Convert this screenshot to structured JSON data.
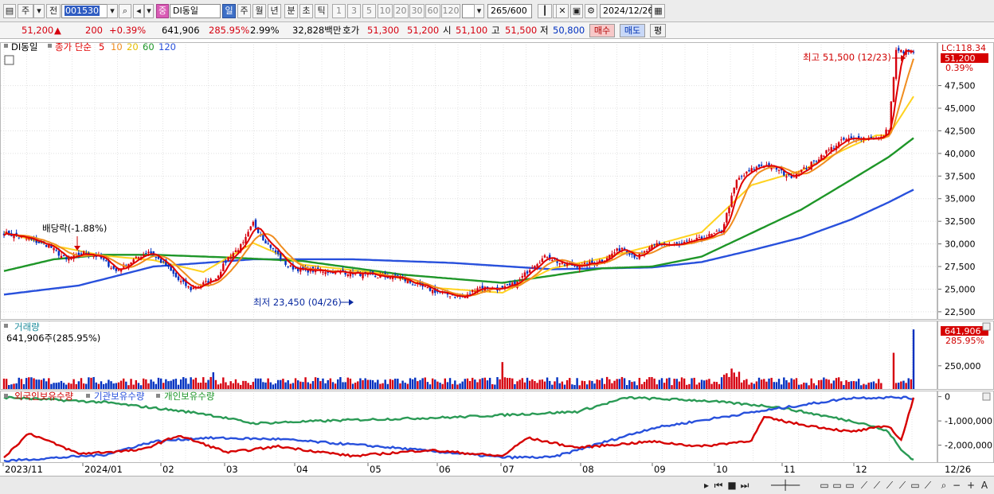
{
  "toolbar": {
    "period_letter": "주",
    "prev_label": "전",
    "stock_code": "001530",
    "stock_name": "DI동일",
    "tf_badge": "중",
    "timeframes": [
      "일",
      "주",
      "월",
      "년",
      "분",
      "초",
      "틱"
    ],
    "selected_timeframe": "일",
    "minute_options": [
      "1",
      "3",
      "5",
      "10",
      "20",
      "30",
      "60",
      "120"
    ],
    "count_value": "265",
    "count_max": "/600",
    "date_value": "2024/12/26"
  },
  "quote": {
    "price": "51,200",
    "change_arrow": "▲",
    "change": "200",
    "change_pct": "+0.39%",
    "volume": "641,906",
    "volume_ratio": "285.95%",
    "turnover": "2.99%",
    "amount": "32,828백만",
    "bid_label": "호가",
    "bid1": "51,300",
    "bid2": "51,200",
    "open_label": "시",
    "open": "51,100",
    "high_label": "고",
    "high": "51,500",
    "low_label": "저",
    "low": "50,800",
    "buy_label": "매수",
    "sell_label": "매도",
    "eval_label": "평"
  },
  "legend": {
    "stock_name": "DI동일",
    "ma_prefix": "종가 단순",
    "ma_periods": [
      "5",
      "10",
      "20",
      "60",
      "120"
    ],
    "volume_title": "거래량",
    "volume_value": "641,906주(285.95%)",
    "holdings": [
      "외국인보유수량",
      "기관보유수량",
      "개인보유수량"
    ]
  },
  "labels": {
    "lc": "LC:118.34",
    "price_tag": "51,200",
    "price_tag_pct": "0.39%",
    "high_note": "최고 51,500 (12/23)",
    "low_note": "최저 23,450 (04/26)",
    "dividend_note": "배당락(-1.88%)",
    "vol_tag": "641,906",
    "vol_tag_pct": "285.95%",
    "date_end": "12/26"
  },
  "colors": {
    "up": "#d6000f",
    "down": "#0030c0",
    "ma5": "#e00000",
    "ma10": "#f08c1e",
    "ma20": "#ffd21e",
    "ma60": "#1e9628",
    "ma120": "#2850dc",
    "foreign": "#2850dc",
    "institution": "#d60000",
    "individual": "#2a9a55"
  },
  "chart_data": [
    {
      "type": "candlestick",
      "title": "DI동일 일봉",
      "x_dates": [
        "2023/11",
        "2024/01",
        "02",
        "03",
        "04",
        "05",
        "06",
        "07",
        "08",
        "09",
        "10",
        "11",
        "12"
      ],
      "y_ticks": [
        22500,
        25000,
        27500,
        30000,
        32500,
        35000,
        37500,
        40000,
        42500,
        45000,
        47500
      ],
      "ylim": [
        21700,
        52300
      ],
      "close_anchors": [
        [
          0,
          31200
        ],
        [
          10,
          30500
        ],
        [
          18,
          29800
        ],
        [
          25,
          28200
        ],
        [
          32,
          29000
        ],
        [
          38,
          28600
        ],
        [
          45,
          27000
        ],
        [
          52,
          28200
        ],
        [
          58,
          29200
        ],
        [
          65,
          27600
        ],
        [
          70,
          26000
        ],
        [
          75,
          25000
        ],
        [
          80,
          25600
        ],
        [
          85,
          26200
        ],
        [
          90,
          28500
        ],
        [
          96,
          30000
        ],
        [
          100,
          32300
        ],
        [
          104,
          30600
        ],
        [
          108,
          29400
        ],
        [
          114,
          27500
        ],
        [
          120,
          27100
        ],
        [
          130,
          27000
        ],
        [
          140,
          26800
        ],
        [
          150,
          26400
        ],
        [
          158,
          26300
        ],
        [
          166,
          25400
        ],
        [
          176,
          24500
        ],
        [
          185,
          24100
        ],
        [
          190,
          25200
        ],
        [
          200,
          25000
        ],
        [
          206,
          25700
        ],
        [
          212,
          27600
        ],
        [
          218,
          28700
        ],
        [
          224,
          27700
        ],
        [
          232,
          27600
        ],
        [
          240,
          28200
        ],
        [
          248,
          29600
        ],
        [
          254,
          28500
        ],
        [
          262,
          30000
        ],
        [
          270,
          29800
        ],
        [
          280,
          30600
        ],
        [
          288,
          31400
        ],
        [
          294,
          37000
        ],
        [
          300,
          38200
        ],
        [
          305,
          38800
        ],
        [
          310,
          38300
        ],
        [
          315,
          37400
        ],
        [
          322,
          38400
        ],
        [
          330,
          40200
        ],
        [
          337,
          41500
        ],
        [
          345,
          41700
        ],
        [
          352,
          41700
        ],
        [
          355,
          42800
        ],
        [
          358,
          51300
        ],
        [
          365,
          51200
        ]
      ],
      "ma_anchors": {
        "ma20": [
          [
            0,
            31300
          ],
          [
            20,
            29800
          ],
          [
            40,
            28700
          ],
          [
            60,
            28200
          ],
          [
            80,
            26900
          ],
          [
            100,
            30100
          ],
          [
            120,
            27700
          ],
          [
            150,
            26800
          ],
          [
            175,
            25100
          ],
          [
            200,
            24600
          ],
          [
            220,
            27300
          ],
          [
            240,
            28400
          ],
          [
            260,
            29800
          ],
          [
            280,
            31300
          ],
          [
            300,
            36500
          ],
          [
            320,
            38100
          ],
          [
            340,
            40800
          ],
          [
            350,
            42000
          ],
          [
            355,
            42000
          ],
          [
            365,
            46300
          ]
        ],
        "ma60": [
          [
            0,
            27000
          ],
          [
            20,
            28300
          ],
          [
            40,
            28800
          ],
          [
            60,
            28800
          ],
          [
            90,
            28500
          ],
          [
            120,
            28100
          ],
          [
            160,
            26600
          ],
          [
            200,
            25700
          ],
          [
            240,
            27300
          ],
          [
            260,
            27500
          ],
          [
            280,
            28600
          ],
          [
            300,
            31200
          ],
          [
            320,
            33800
          ],
          [
            340,
            37100
          ],
          [
            355,
            39600
          ],
          [
            365,
            41700
          ]
        ],
        "ma120": [
          [
            0,
            24400
          ],
          [
            30,
            25400
          ],
          [
            60,
            27500
          ],
          [
            100,
            28300
          ],
          [
            140,
            28300
          ],
          [
            180,
            27900
          ],
          [
            220,
            27200
          ],
          [
            260,
            27400
          ],
          [
            280,
            28000
          ],
          [
            300,
            29300
          ],
          [
            320,
            30700
          ],
          [
            340,
            32700
          ],
          [
            355,
            34600
          ],
          [
            365,
            36000
          ]
        ]
      },
      "high": {
        "value": 51500,
        "date": "12/23"
      },
      "low": {
        "value": 23450,
        "date": "04/26"
      },
      "last_close": 51200
    },
    {
      "type": "bar",
      "title": "거래량",
      "y_ticks": [
        250000
      ],
      "last_volume": 641906,
      "peaks": [
        [
          84,
          180000
        ],
        [
          200,
          290000
        ],
        [
          292,
          220000
        ],
        [
          357,
          390000
        ],
        [
          365,
          641906
        ]
      ]
    },
    {
      "type": "line",
      "title": "외국인/기관/개인 보유수량",
      "series": [
        "외국인보유수량",
        "기관보유수량",
        "개인보유수량"
      ],
      "y_ticks": [
        0,
        -1000000,
        -2000000
      ]
    }
  ]
}
